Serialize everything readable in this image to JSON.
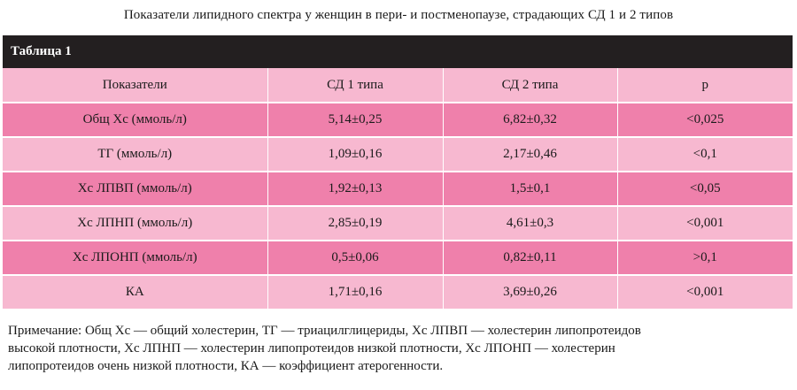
{
  "caption": "Показатели липидного спектра у женщин в пери- и постменопаузе, страдающих СД 1 и 2 типов",
  "table": {
    "title": "Таблица 1",
    "headers": [
      "Показатели",
      "СД 1 типа",
      "СД 2 типа",
      "p"
    ],
    "rows": [
      [
        "Общ Хс (ммоль/л)",
        "5,14±0,25",
        "6,82±0,32",
        "<0,025"
      ],
      [
        "ТГ (ммоль/л)",
        "1,09±0,16",
        "2,17±0,46",
        "<0,1"
      ],
      [
        "Хс ЛПВП (ммоль/л)",
        "1,92±0,13",
        "1,5±0,1",
        "<0,05"
      ],
      [
        "Хс ЛПНП (ммоль/л)",
        "2,85±0,19",
        "4,61±0,3",
        "<0,001"
      ],
      [
        "Хс ЛПОНП (ммоль/л)",
        "0,5±0,06",
        "0,82±0,11",
        ">0,1"
      ],
      [
        "КА",
        "1,71±0,16",
        "3,69±0,26",
        "<0,001"
      ]
    ]
  },
  "note": {
    "line1": "Примечание: Общ Хс — общий холестерин, ТГ — триацилглицериды, Хс ЛПВП — холестерин липопротеидов",
    "line2": "высокой плотности, Хс ЛПНП — холестерин липопротеидов низкой плотности, Хс ЛПОНП — холестерин",
    "line3": "липопротеидов очень низкой плотности, КА — коэффициент атерогенности."
  },
  "colors": {
    "header_bar": "#231f20",
    "row_dark": "#ef80ab",
    "row_light": "#f7b8d0"
  }
}
